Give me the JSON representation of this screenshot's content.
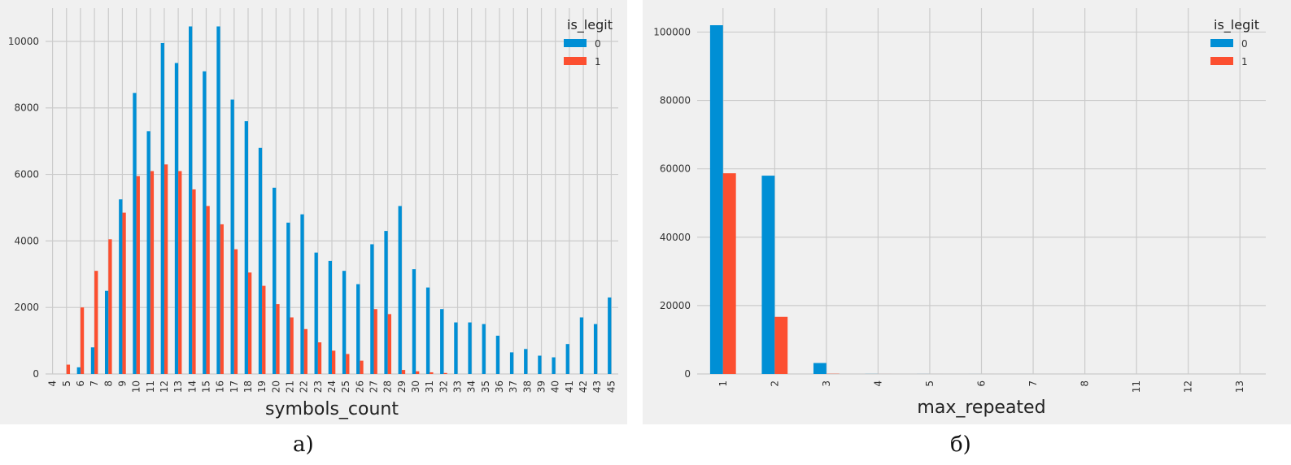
{
  "captions": [
    "а)",
    "б)"
  ],
  "colors": {
    "series0": "#008fd5",
    "series1": "#fc4f30",
    "grid": "#cbcbcb",
    "background": "#f0f0f0"
  },
  "chart_data": [
    {
      "type": "bar",
      "xlabel": "symbols_count",
      "ylabel": "",
      "ylim": [
        0,
        11000
      ],
      "yticks": [
        0,
        2000,
        4000,
        6000,
        8000,
        10000
      ],
      "grid": true,
      "legend": {
        "title": "is_legit",
        "placement": "top-right"
      },
      "categories": [
        "4",
        "5",
        "6",
        "7",
        "8",
        "9",
        "10",
        "11",
        "12",
        "13",
        "14",
        "15",
        "16",
        "17",
        "18",
        "19",
        "20",
        "21",
        "22",
        "23",
        "24",
        "25",
        "26",
        "27",
        "28",
        "29",
        "30",
        "31",
        "32",
        "33",
        "34",
        "35",
        "36",
        "37",
        "38",
        "39",
        "40",
        "41",
        "42",
        "43",
        "45"
      ],
      "series": [
        {
          "name": "0",
          "values": [
            0,
            0,
            200,
            800,
            2500,
            5250,
            8450,
            7300,
            9950,
            9350,
            10450,
            9100,
            10450,
            8250,
            7600,
            6800,
            5600,
            4550,
            4800,
            3650,
            3400,
            3100,
            2700,
            3900,
            4300,
            5050,
            3150,
            2600,
            1950,
            1550,
            1550,
            1500,
            1150,
            650,
            750,
            550,
            500,
            900,
            1700,
            1500,
            2300
          ]
        },
        {
          "name": "1",
          "values": [
            0,
            280,
            2000,
            3100,
            4050,
            4850,
            5950,
            6100,
            6300,
            6100,
            5550,
            5050,
            4500,
            3750,
            3050,
            2650,
            2100,
            1700,
            1350,
            950,
            700,
            600,
            400,
            1950,
            1800,
            120,
            80,
            50,
            30,
            0,
            0,
            0,
            0,
            0,
            0,
            0,
            0,
            0,
            0,
            0,
            0
          ]
        }
      ]
    },
    {
      "type": "bar",
      "xlabel": "max_repeated",
      "ylabel": "",
      "ylim": [
        0,
        107000
      ],
      "yticks": [
        0,
        20000,
        40000,
        60000,
        80000,
        100000
      ],
      "grid": true,
      "legend": {
        "title": "is_legit",
        "placement": "top-right"
      },
      "categories": [
        "1",
        "2",
        "3",
        "4",
        "5",
        "6",
        "7",
        "8",
        "11",
        "12",
        "13"
      ],
      "series": [
        {
          "name": "0",
          "values": [
            102000,
            58000,
            3200,
            20,
            10,
            5,
            3,
            2,
            1,
            1,
            1
          ]
        },
        {
          "name": "1",
          "values": [
            58700,
            16700,
            60,
            5,
            2,
            1,
            0,
            0,
            0,
            0,
            0
          ]
        }
      ]
    }
  ]
}
